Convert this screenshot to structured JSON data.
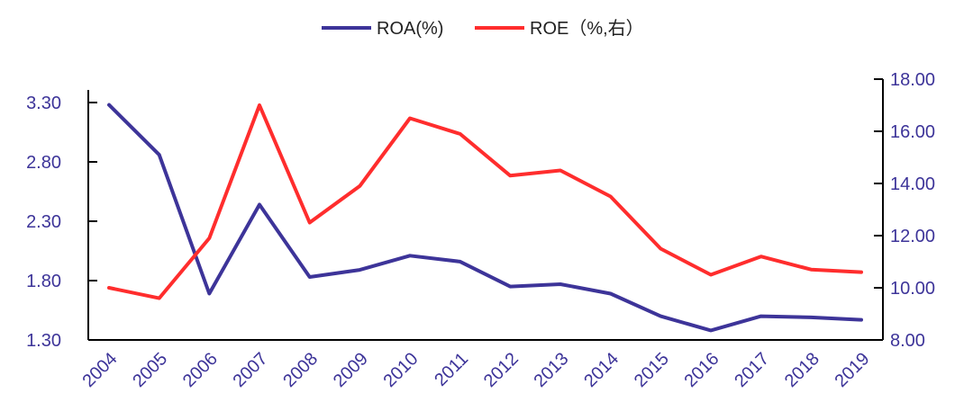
{
  "chart_data": {
    "type": "line",
    "title": "",
    "categories": [
      "2004",
      "2005",
      "2006",
      "2007",
      "2008",
      "2009",
      "2010",
      "2011",
      "2012",
      "2013",
      "2014",
      "2015",
      "2016",
      "2017",
      "2018",
      "2019"
    ],
    "series": [
      {
        "name": "ROA(%)",
        "axis": "left",
        "color": "#3d3499",
        "values": [
          3.28,
          2.86,
          1.69,
          2.44,
          1.83,
          1.89,
          2.01,
          1.96,
          1.75,
          1.77,
          1.69,
          1.5,
          1.38,
          1.5,
          1.49,
          1.47
        ]
      },
      {
        "name": "ROE（%,右）",
        "axis": "right",
        "color": "#ff2d2d",
        "values": [
          10.0,
          9.6,
          11.9,
          17.0,
          12.5,
          13.9,
          16.5,
          15.9,
          14.3,
          14.5,
          13.5,
          11.5,
          10.5,
          11.2,
          10.7,
          10.6
        ]
      }
    ],
    "y_left": {
      "min": 1.3,
      "max": 3.3,
      "ticks": [
        "1.30",
        "1.80",
        "2.30",
        "2.80",
        "3.30"
      ]
    },
    "y_right": {
      "min": 8.0,
      "max": 18.0,
      "ticks": [
        "8.00",
        "10.00",
        "12.00",
        "14.00",
        "16.00",
        "18.00"
      ]
    },
    "grid": false,
    "legend_position": "top-center"
  }
}
